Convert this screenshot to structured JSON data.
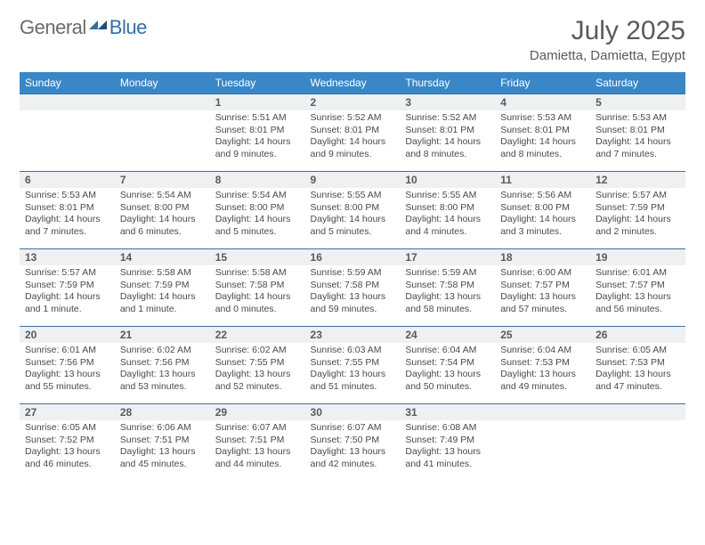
{
  "logo": {
    "text_part1": "General",
    "text_part2": "Blue"
  },
  "header": {
    "month": "July 2025",
    "location": "Damietta, Damietta, Egypt"
  },
  "colors": {
    "header_bg": "#3a87c7",
    "header_text": "#ffffff",
    "daynum_bg": "#eef0f1",
    "rule": "#3a6fa5",
    "logo_gray": "#6b6b6b",
    "logo_blue": "#2f6fa8"
  },
  "weekdays": [
    "Sunday",
    "Monday",
    "Tuesday",
    "Wednesday",
    "Thursday",
    "Friday",
    "Saturday"
  ],
  "weeks": [
    [
      {
        "empty": true
      },
      {
        "empty": true
      },
      {
        "day": "1",
        "sunrise": "Sunrise: 5:51 AM",
        "sunset": "Sunset: 8:01 PM",
        "daylight": "Daylight: 14 hours and 9 minutes."
      },
      {
        "day": "2",
        "sunrise": "Sunrise: 5:52 AM",
        "sunset": "Sunset: 8:01 PM",
        "daylight": "Daylight: 14 hours and 9 minutes."
      },
      {
        "day": "3",
        "sunrise": "Sunrise: 5:52 AM",
        "sunset": "Sunset: 8:01 PM",
        "daylight": "Daylight: 14 hours and 8 minutes."
      },
      {
        "day": "4",
        "sunrise": "Sunrise: 5:53 AM",
        "sunset": "Sunset: 8:01 PM",
        "daylight": "Daylight: 14 hours and 8 minutes."
      },
      {
        "day": "5",
        "sunrise": "Sunrise: 5:53 AM",
        "sunset": "Sunset: 8:01 PM",
        "daylight": "Daylight: 14 hours and 7 minutes."
      }
    ],
    [
      {
        "day": "6",
        "sunrise": "Sunrise: 5:53 AM",
        "sunset": "Sunset: 8:01 PM",
        "daylight": "Daylight: 14 hours and 7 minutes."
      },
      {
        "day": "7",
        "sunrise": "Sunrise: 5:54 AM",
        "sunset": "Sunset: 8:00 PM",
        "daylight": "Daylight: 14 hours and 6 minutes."
      },
      {
        "day": "8",
        "sunrise": "Sunrise: 5:54 AM",
        "sunset": "Sunset: 8:00 PM",
        "daylight": "Daylight: 14 hours and 5 minutes."
      },
      {
        "day": "9",
        "sunrise": "Sunrise: 5:55 AM",
        "sunset": "Sunset: 8:00 PM",
        "daylight": "Daylight: 14 hours and 5 minutes."
      },
      {
        "day": "10",
        "sunrise": "Sunrise: 5:55 AM",
        "sunset": "Sunset: 8:00 PM",
        "daylight": "Daylight: 14 hours and 4 minutes."
      },
      {
        "day": "11",
        "sunrise": "Sunrise: 5:56 AM",
        "sunset": "Sunset: 8:00 PM",
        "daylight": "Daylight: 14 hours and 3 minutes."
      },
      {
        "day": "12",
        "sunrise": "Sunrise: 5:57 AM",
        "sunset": "Sunset: 7:59 PM",
        "daylight": "Daylight: 14 hours and 2 minutes."
      }
    ],
    [
      {
        "day": "13",
        "sunrise": "Sunrise: 5:57 AM",
        "sunset": "Sunset: 7:59 PM",
        "daylight": "Daylight: 14 hours and 1 minute."
      },
      {
        "day": "14",
        "sunrise": "Sunrise: 5:58 AM",
        "sunset": "Sunset: 7:59 PM",
        "daylight": "Daylight: 14 hours and 1 minute."
      },
      {
        "day": "15",
        "sunrise": "Sunrise: 5:58 AM",
        "sunset": "Sunset: 7:58 PM",
        "daylight": "Daylight: 14 hours and 0 minutes."
      },
      {
        "day": "16",
        "sunrise": "Sunrise: 5:59 AM",
        "sunset": "Sunset: 7:58 PM",
        "daylight": "Daylight: 13 hours and 59 minutes."
      },
      {
        "day": "17",
        "sunrise": "Sunrise: 5:59 AM",
        "sunset": "Sunset: 7:58 PM",
        "daylight": "Daylight: 13 hours and 58 minutes."
      },
      {
        "day": "18",
        "sunrise": "Sunrise: 6:00 AM",
        "sunset": "Sunset: 7:57 PM",
        "daylight": "Daylight: 13 hours and 57 minutes."
      },
      {
        "day": "19",
        "sunrise": "Sunrise: 6:01 AM",
        "sunset": "Sunset: 7:57 PM",
        "daylight": "Daylight: 13 hours and 56 minutes."
      }
    ],
    [
      {
        "day": "20",
        "sunrise": "Sunrise: 6:01 AM",
        "sunset": "Sunset: 7:56 PM",
        "daylight": "Daylight: 13 hours and 55 minutes."
      },
      {
        "day": "21",
        "sunrise": "Sunrise: 6:02 AM",
        "sunset": "Sunset: 7:56 PM",
        "daylight": "Daylight: 13 hours and 53 minutes."
      },
      {
        "day": "22",
        "sunrise": "Sunrise: 6:02 AM",
        "sunset": "Sunset: 7:55 PM",
        "daylight": "Daylight: 13 hours and 52 minutes."
      },
      {
        "day": "23",
        "sunrise": "Sunrise: 6:03 AM",
        "sunset": "Sunset: 7:55 PM",
        "daylight": "Daylight: 13 hours and 51 minutes."
      },
      {
        "day": "24",
        "sunrise": "Sunrise: 6:04 AM",
        "sunset": "Sunset: 7:54 PM",
        "daylight": "Daylight: 13 hours and 50 minutes."
      },
      {
        "day": "25",
        "sunrise": "Sunrise: 6:04 AM",
        "sunset": "Sunset: 7:53 PM",
        "daylight": "Daylight: 13 hours and 49 minutes."
      },
      {
        "day": "26",
        "sunrise": "Sunrise: 6:05 AM",
        "sunset": "Sunset: 7:53 PM",
        "daylight": "Daylight: 13 hours and 47 minutes."
      }
    ],
    [
      {
        "day": "27",
        "sunrise": "Sunrise: 6:05 AM",
        "sunset": "Sunset: 7:52 PM",
        "daylight": "Daylight: 13 hours and 46 minutes."
      },
      {
        "day": "28",
        "sunrise": "Sunrise: 6:06 AM",
        "sunset": "Sunset: 7:51 PM",
        "daylight": "Daylight: 13 hours and 45 minutes."
      },
      {
        "day": "29",
        "sunrise": "Sunrise: 6:07 AM",
        "sunset": "Sunset: 7:51 PM",
        "daylight": "Daylight: 13 hours and 44 minutes."
      },
      {
        "day": "30",
        "sunrise": "Sunrise: 6:07 AM",
        "sunset": "Sunset: 7:50 PM",
        "daylight": "Daylight: 13 hours and 42 minutes."
      },
      {
        "day": "31",
        "sunrise": "Sunrise: 6:08 AM",
        "sunset": "Sunset: 7:49 PM",
        "daylight": "Daylight: 13 hours and 41 minutes."
      },
      {
        "empty": true
      },
      {
        "empty": true
      }
    ]
  ]
}
